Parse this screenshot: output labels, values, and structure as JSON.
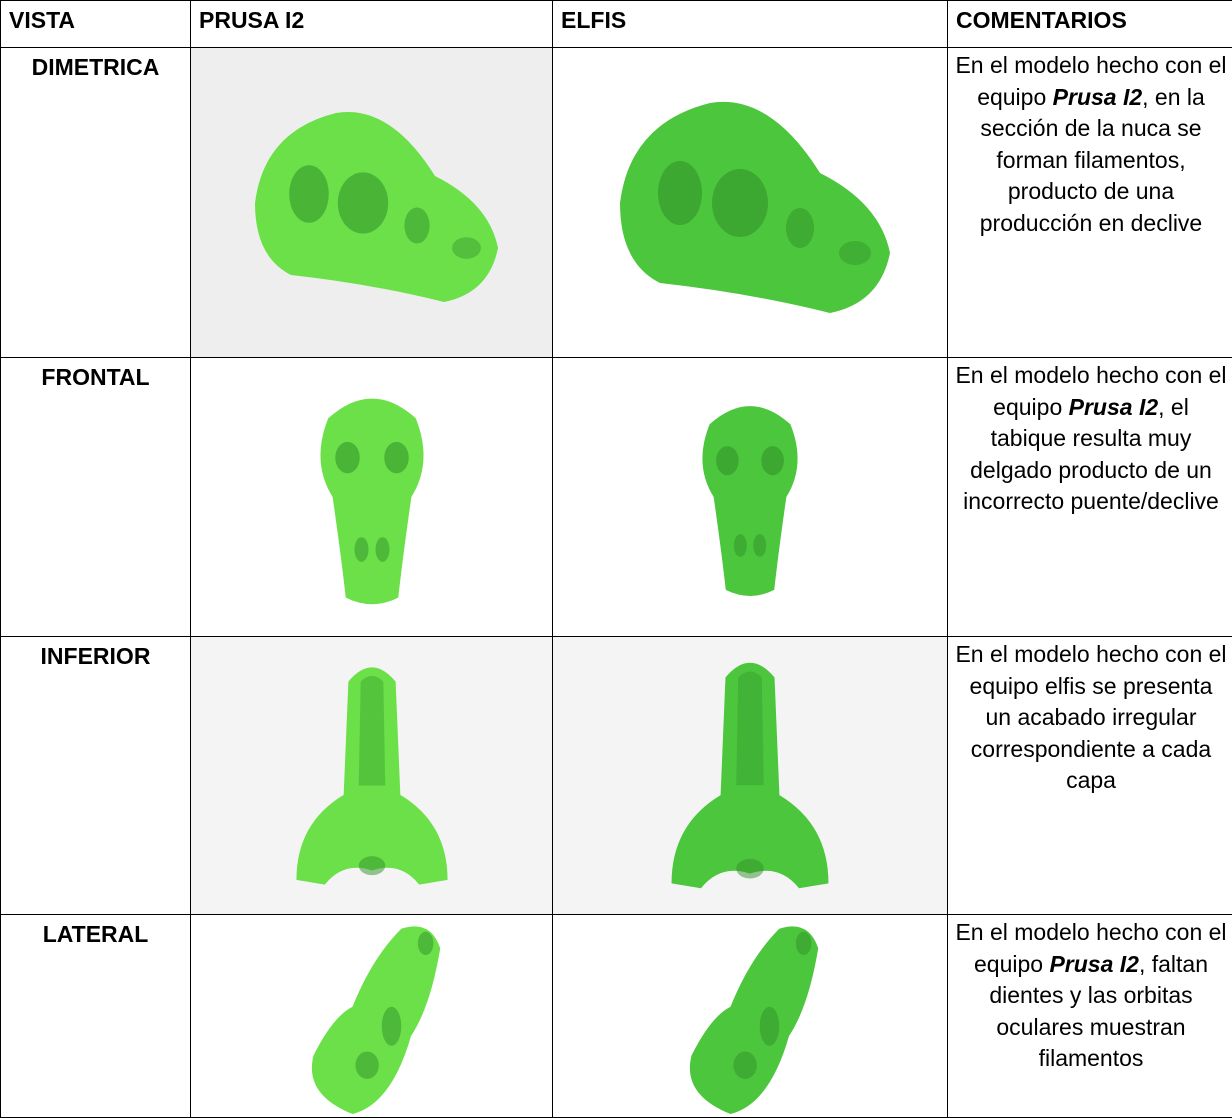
{
  "table": {
    "headers": [
      "VISTA",
      "PRUSA I2",
      "ELFIS",
      "COMENTARIOS"
    ],
    "rows": [
      {
        "view": "DIMETRICA",
        "comment": [
          {
            "text": "En el modelo hecho con el equipo ",
            "bold_italic": false
          },
          {
            "text": "Prusa I2",
            "bold_italic": true
          },
          {
            "text": ", en la sección de la nuca se forman filamentos, producto de una producción en declive",
            "bold_italic": false
          }
        ]
      },
      {
        "view": "FRONTAL",
        "comment": [
          {
            "text": "En el modelo hecho con el equipo ",
            "bold_italic": false
          },
          {
            "text": "Prusa I2",
            "bold_italic": true
          },
          {
            "text": ", el tabique resulta muy delgado producto de un incorrecto puente/declive",
            "bold_italic": false
          }
        ]
      },
      {
        "view": "INFERIOR",
        "comment": [
          {
            "text": "En el modelo hecho con el equipo elfis se presenta un acabado irregular correspondiente a cada capa",
            "bold_italic": false
          }
        ]
      },
      {
        "view": "LATERAL",
        "comment": [
          {
            "text": "En el modelo hecho con el equipo ",
            "bold_italic": false
          },
          {
            "text": "Prusa I2",
            "bold_italic": true
          },
          {
            "text": ", faltan dientes y las orbitas oculares muestran filamentos",
            "bold_italic": false
          }
        ]
      }
    ]
  }
}
